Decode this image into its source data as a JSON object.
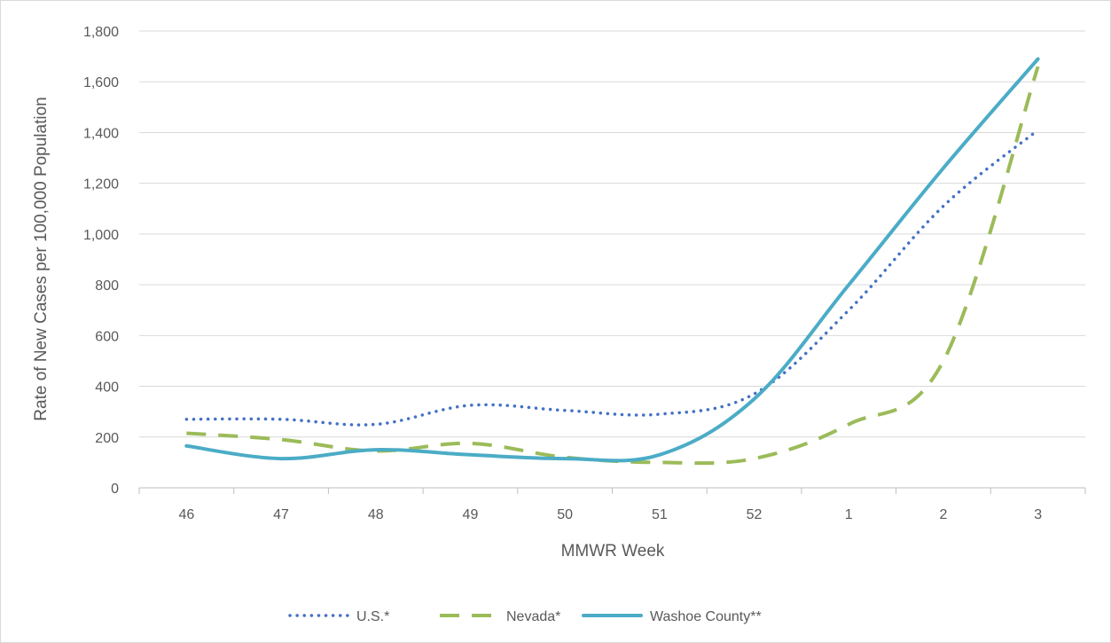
{
  "chart_data": {
    "type": "line",
    "title": "",
    "xlabel": "MMWR Week",
    "ylabel": "Rate of New Cases per 100,000 Population",
    "categories": [
      "46",
      "47",
      "48",
      "49",
      "50",
      "51",
      "52",
      "1",
      "2",
      "3"
    ],
    "ylim": [
      0,
      1800
    ],
    "yticks": [
      0,
      200,
      400,
      600,
      800,
      1000,
      1200,
      1400,
      1600,
      1800
    ],
    "ytick_labels": [
      "0",
      "200",
      "400",
      "600",
      "800",
      "1,000",
      "1,200",
      "1,400",
      "1,600",
      "1,800"
    ],
    "grid": true,
    "legend_position": "bottom",
    "series": [
      {
        "name": "U.S.*",
        "values": [
          270,
          270,
          250,
          325,
          305,
          290,
          370,
          700,
          1110,
          1410
        ],
        "color": "#4472c4",
        "style": "dotted"
      },
      {
        "name": "Nevada*",
        "values": [
          215,
          190,
          145,
          175,
          120,
          100,
          115,
          250,
          500,
          1660
        ],
        "color": "#9bbb59",
        "style": "dashed"
      },
      {
        "name": "Washoe County**",
        "values": [
          165,
          115,
          150,
          130,
          115,
          130,
          350,
          800,
          1260,
          1690
        ],
        "color": "#4bacc6",
        "style": "solid"
      }
    ]
  }
}
